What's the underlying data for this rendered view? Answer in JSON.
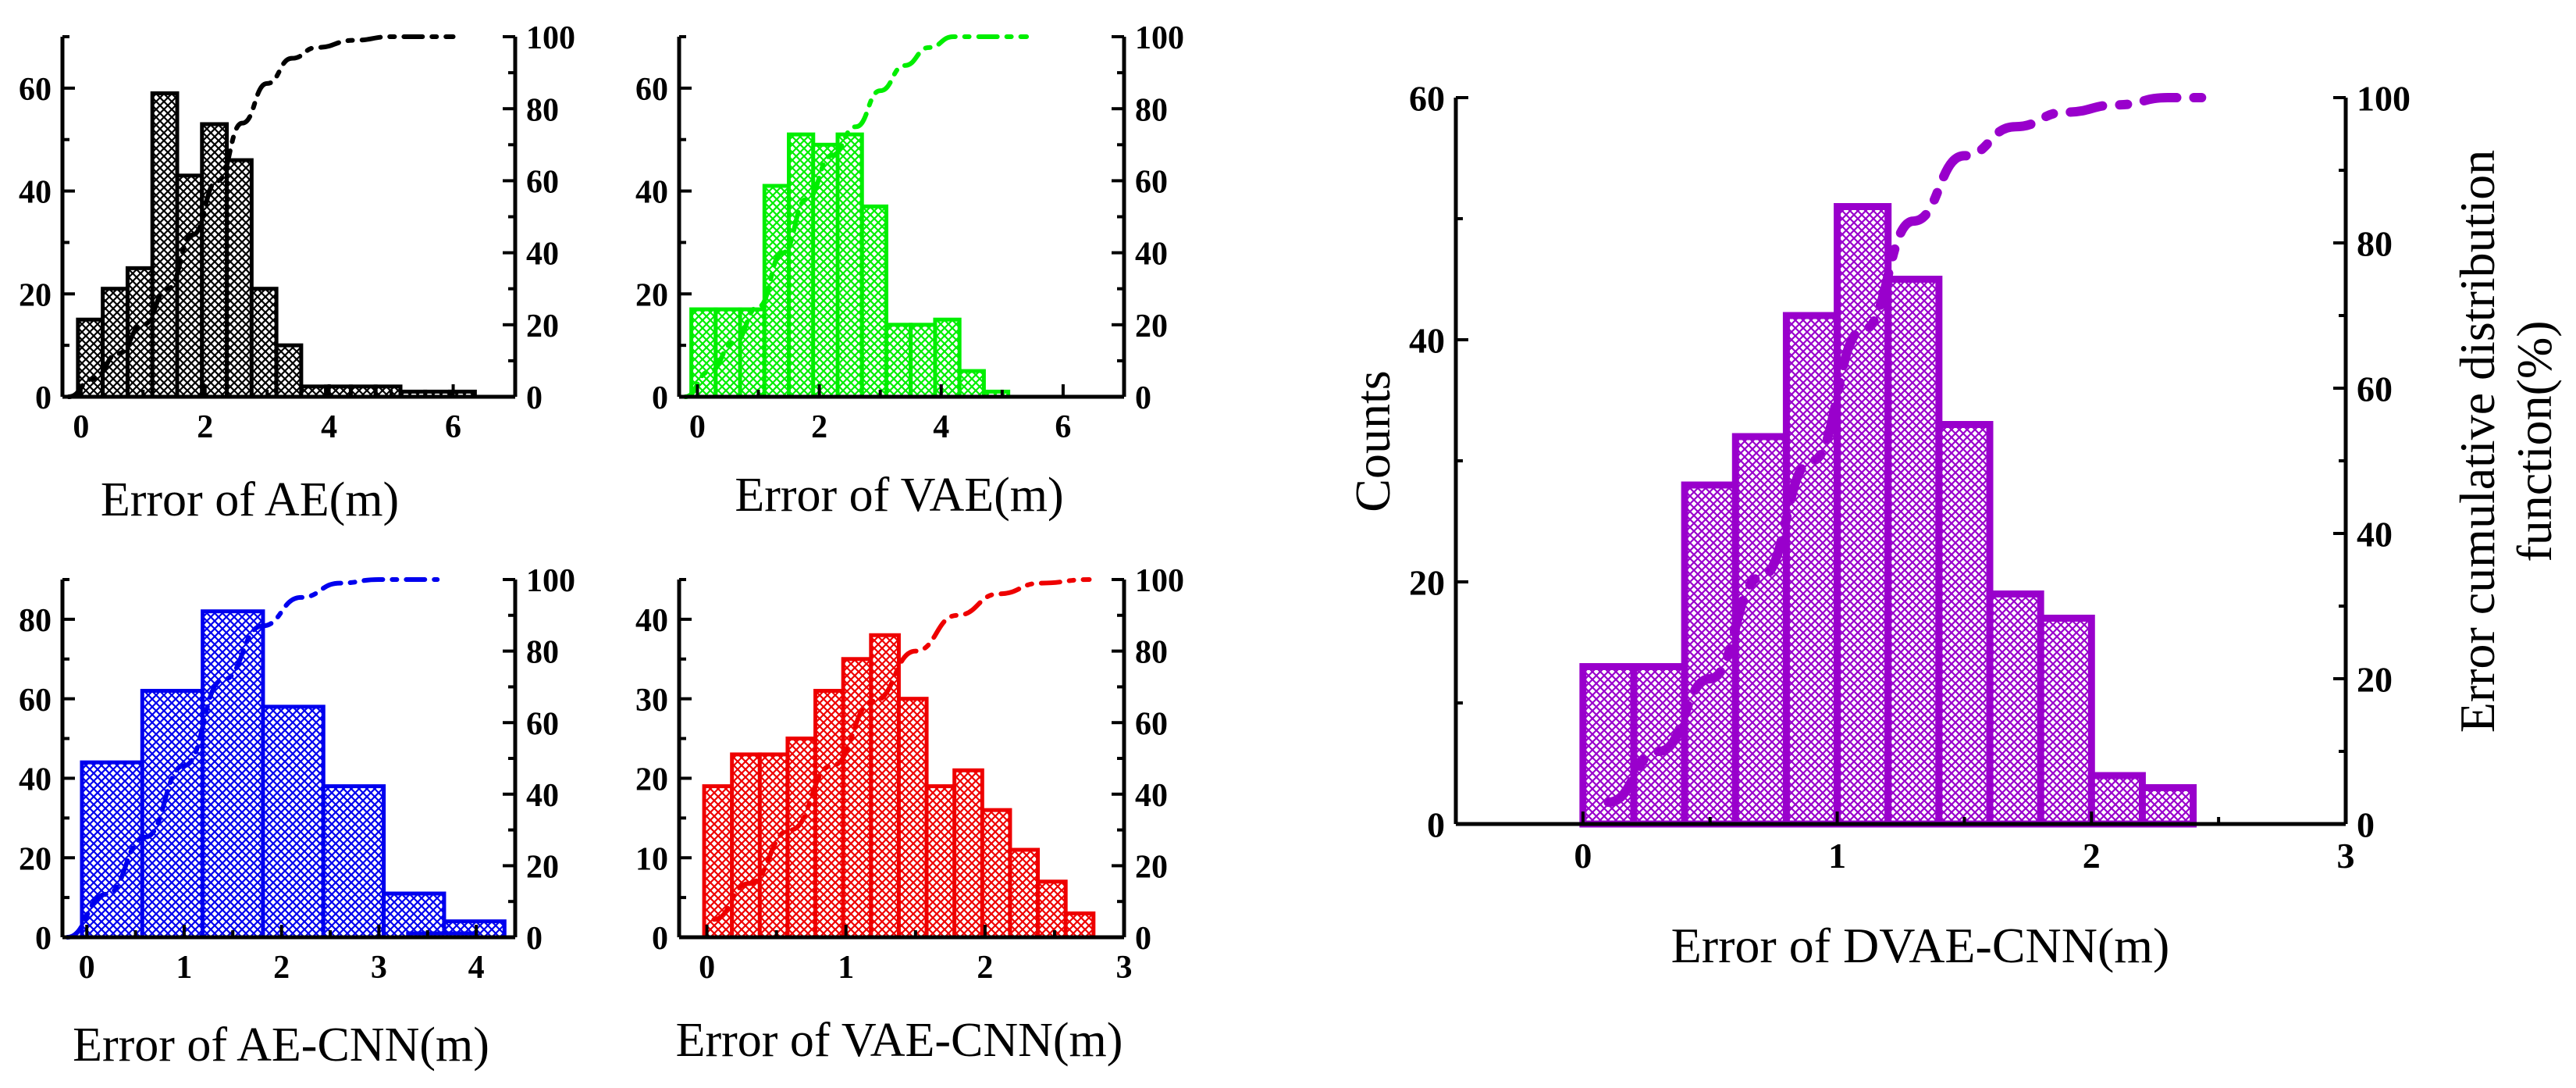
{
  "chart_data": [
    {
      "type": "bar",
      "xlabel": "Error of AE(m)",
      "color": "#000000",
      "xlim": [
        -0.3,
        7.0
      ],
      "ylim": [
        0,
        70
      ],
      "y2lim": [
        0,
        100
      ],
      "xticks": [
        0,
        2,
        4,
        6
      ],
      "yticks": [
        0,
        20,
        40,
        60
      ],
      "y2ticks": [
        0,
        20,
        40,
        60,
        80,
        100
      ],
      "bin_width": 0.4,
      "bin_starts": [
        -0.05,
        0.35,
        0.75,
        1.15,
        1.55,
        1.95,
        2.35,
        2.75,
        3.15,
        3.55,
        3.95,
        4.35,
        4.75,
        5.15,
        5.55,
        5.95
      ],
      "counts": [
        15,
        21,
        25,
        59,
        43,
        53,
        46,
        21,
        10,
        2,
        2,
        2,
        2,
        1,
        1,
        1
      ],
      "cdf": {
        "x": [
          -0.2,
          0.2,
          0.6,
          1.0,
          1.4,
          1.8,
          2.2,
          2.6,
          3.0,
          3.4,
          3.8,
          4.4,
          5.0,
          6.0
        ],
        "y": [
          0,
          5,
          12,
          20,
          30,
          45,
          60,
          76,
          87,
          94,
          97,
          99,
          100,
          100
        ]
      }
    },
    {
      "type": "bar",
      "xlabel": "Error of VAE(m)",
      "color": "#00ee00",
      "xlim": [
        -0.3,
        7.0
      ],
      "ylim": [
        0,
        70
      ],
      "y2lim": [
        0,
        100
      ],
      "xticks": [
        0,
        2,
        4,
        6
      ],
      "yticks": [
        0,
        20,
        40,
        60
      ],
      "y2ticks": [
        0,
        20,
        40,
        60,
        80,
        100
      ],
      "bin_width": 0.4,
      "bin_starts": [
        -0.1,
        0.3,
        0.7,
        1.1,
        1.5,
        1.9,
        2.3,
        2.7,
        3.1,
        3.5,
        3.9,
        4.3,
        4.7
      ],
      "counts": [
        17,
        17,
        17,
        41,
        51,
        49,
        51,
        37,
        14,
        14,
        15,
        5,
        1
      ],
      "cdf": {
        "x": [
          -0.2,
          0.2,
          0.6,
          1.0,
          1.4,
          1.8,
          2.2,
          2.6,
          3.0,
          3.4,
          3.8,
          4.2,
          4.6,
          5.4
        ],
        "y": [
          0,
          7,
          15,
          25,
          40,
          55,
          67,
          75,
          85,
          92,
          97,
          100,
          100,
          100
        ]
      }
    },
    {
      "type": "bar",
      "xlabel": "Error of AE-CNN(m)",
      "color": "#0000ee",
      "xlim": [
        -0.25,
        4.4
      ],
      "ylim": [
        0,
        90
      ],
      "y2lim": [
        0,
        100
      ],
      "xticks": [
        0,
        1,
        2,
        3,
        4
      ],
      "yticks": [
        0,
        20,
        40,
        60,
        80
      ],
      "y2ticks": [
        0,
        20,
        40,
        60,
        80,
        100
      ],
      "bin_width": 0.62,
      "bin_starts": [
        -0.05,
        0.57,
        1.19,
        1.81,
        2.43,
        3.05,
        3.67
      ],
      "counts": [
        44,
        62,
        82,
        58,
        38,
        11,
        4
      ],
      "extra_bar": {
        "start": 3.3,
        "width": 0.7,
        "count": 1
      },
      "cdf": {
        "x": [
          -0.2,
          0.2,
          0.6,
          1.0,
          1.4,
          1.8,
          2.2,
          2.6,
          3.0,
          3.6
        ],
        "y": [
          0,
          12,
          28,
          48,
          72,
          87,
          95,
          99,
          100,
          100
        ]
      }
    },
    {
      "type": "bar",
      "xlabel": "Error of VAE-CNN(m)",
      "color": "#ee0000",
      "xlim": [
        -0.2,
        3.0
      ],
      "ylim": [
        0,
        45
      ],
      "y2lim": [
        0,
        100
      ],
      "xticks": [
        0,
        1,
        2,
        3
      ],
      "yticks": [
        0,
        10,
        20,
        30,
        40
      ],
      "y2ticks": [
        0,
        20,
        40,
        60,
        80,
        100
      ],
      "bin_width": 0.2,
      "bin_starts": [
        -0.02,
        0.18,
        0.38,
        0.58,
        0.78,
        0.98,
        1.18,
        1.38,
        1.58,
        1.78,
        1.98,
        2.18,
        2.38,
        2.58
      ],
      "counts": [
        19,
        23,
        23,
        25,
        31,
        35,
        38,
        30,
        19,
        21,
        16,
        11,
        7,
        3
      ],
      "cdf": {
        "x": [
          0.05,
          0.3,
          0.6,
          0.9,
          1.2,
          1.5,
          1.8,
          2.1,
          2.4,
          2.75
        ],
        "y": [
          5,
          15,
          30,
          48,
          66,
          80,
          90,
          96,
          99,
          100
        ]
      }
    },
    {
      "type": "bar",
      "xlabel": "Error of DVAE-CNN(m)",
      "ylabel": "Counts",
      "y2label_lines": [
        "Error cumulative distribution",
        "function(%)"
      ],
      "color": "#9900cc",
      "xlim": [
        -0.5,
        3.0
      ],
      "ylim": [
        0,
        60
      ],
      "y2lim": [
        0,
        100
      ],
      "xticks": [
        0,
        1,
        2,
        3
      ],
      "yticks": [
        0,
        20,
        40,
        60
      ],
      "y2ticks": [
        0,
        20,
        40,
        60,
        80,
        100
      ],
      "bin_width": 0.2,
      "bin_starts": [
        0,
        0.2,
        0.4,
        0.6,
        0.8,
        1.0,
        1.2,
        1.4,
        1.6,
        1.8,
        2.0,
        2.2
      ],
      "counts": [
        13,
        13,
        28,
        32,
        42,
        51,
        45,
        33,
        19,
        17,
        4,
        3
      ],
      "cdf": {
        "x": [
          0.1,
          0.3,
          0.5,
          0.7,
          0.9,
          1.1,
          1.3,
          1.5,
          1.7,
          1.9,
          2.1,
          2.3,
          2.5
        ],
        "y": [
          3,
          10,
          20,
          34,
          50,
          68,
          83,
          92,
          96,
          98,
          99,
          100,
          100
        ]
      }
    }
  ]
}
